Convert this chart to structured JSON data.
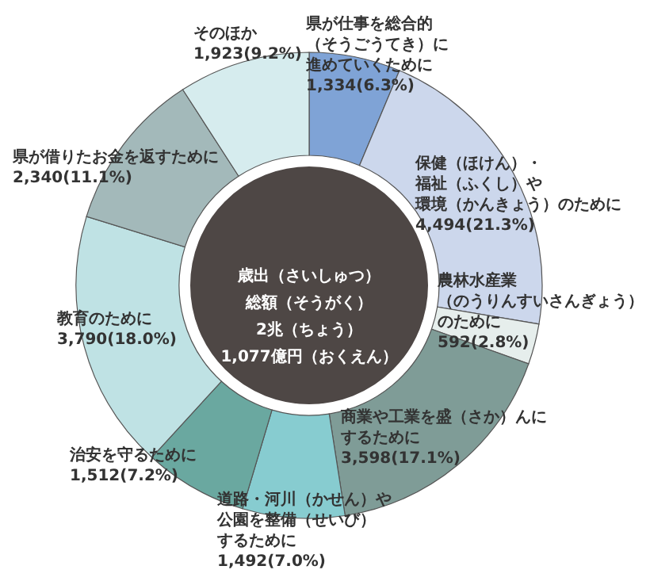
{
  "chart_data": {
    "type": "donut",
    "categories": [
      "県が仕事を総合的（そうごうてき）に進めていくために",
      "保健（ほけん）・福祉（ふくし）や環境（かんきょう）のために",
      "農林水産業（のうりんすいさんぎょう）のために",
      "商業や工業を盛（さか）んにするために",
      "道路・河川（かせん）や公園を整備（せいび）するために",
      "治安を守るために",
      "教育のために",
      "県が借りたお金を返すために",
      "そのほか"
    ],
    "values": [
      1334,
      4494,
      592,
      3598,
      1492,
      1512,
      3790,
      2340,
      1923
    ],
    "value_labels": [
      "1,334(6.3%)",
      "4,494(21.3%)",
      "592(2.8%)",
      "3,598(17.1%)",
      "1,492(7.0%)",
      "1,512(7.2%)",
      "3,790(18.0%)",
      "2,340(11.1%)",
      "1,923(9.2%)"
    ],
    "colors": [
      "#7fa3d6",
      "#ccd7ec",
      "#e6eeec",
      "#7f9c97",
      "#87ccd0",
      "#6aa8a0",
      "#bfe2e4",
      "#a3b9ba",
      "#d6ecee"
    ],
    "annotations": [
      "歳出（さいしゅつ）総額（そうがく）2兆（ちょう）1,077億円（おくえん）"
    ]
  }
}
